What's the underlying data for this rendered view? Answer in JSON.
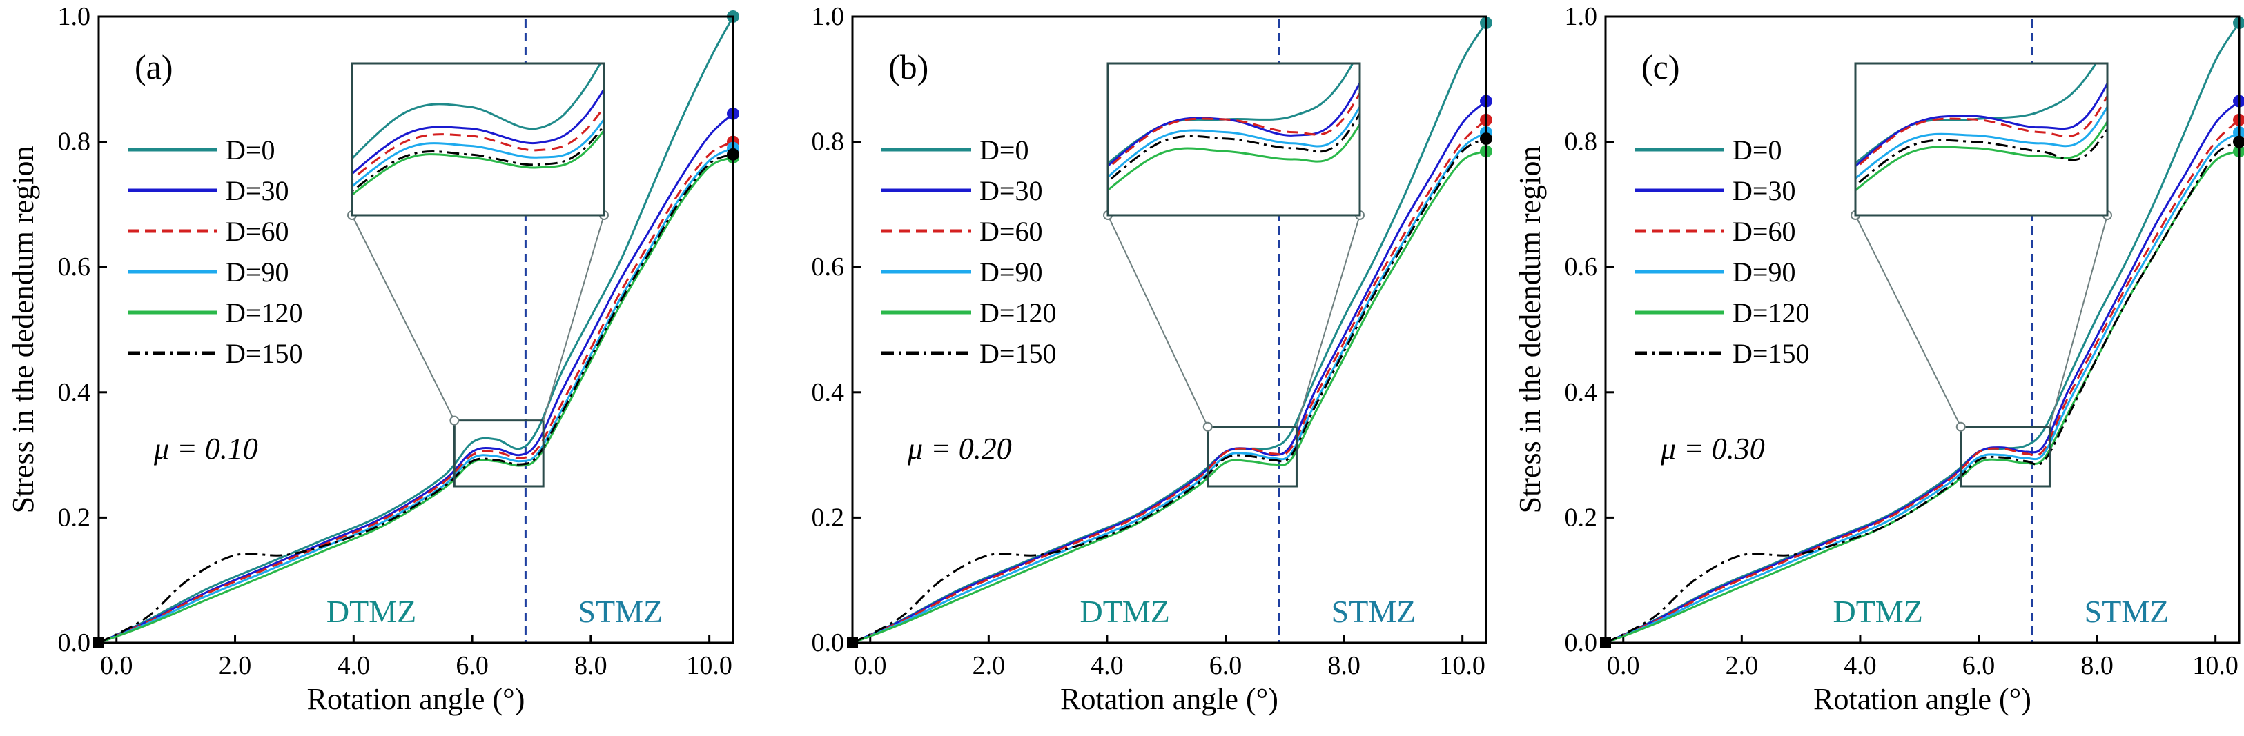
{
  "chart_data": [
    {
      "type": "line",
      "panel_label": "(a)",
      "annotation": "μ = 0.10",
      "xlabel": "Rotation angle (°)",
      "ylabel": "Stress in the dedendum region",
      "xlim": [
        -0.3,
        10.4
      ],
      "ylim": [
        0,
        1.0
      ],
      "xticks": [
        "0.0",
        "2.0",
        "4.0",
        "6.0",
        "8.0",
        "10.0"
      ],
      "yticks": [
        "0.0",
        "0.2",
        "0.4",
        "0.6",
        "0.8",
        "1.0"
      ],
      "divider_x": 6.9,
      "zone_labels": [
        "DTMZ",
        "STMZ"
      ],
      "inset_range": {
        "x": [
          5.7,
          7.2
        ],
        "y": [
          0.25,
          0.355
        ]
      },
      "series": [
        {
          "name": "D=0",
          "color": "#1f8a8a",
          "dash": "solid",
          "x": [
            -0.3,
            0.5,
            1.5,
            2.5,
            3.5,
            4.5,
            5.5,
            6.0,
            6.4,
            6.8,
            7.1,
            7.5,
            8.0,
            8.5,
            9.0,
            9.5,
            10.0,
            10.4
          ],
          "y": [
            0,
            0.035,
            0.085,
            0.125,
            0.165,
            0.205,
            0.265,
            0.32,
            0.325,
            0.31,
            0.34,
            0.43,
            0.52,
            0.61,
            0.72,
            0.83,
            0.93,
            1.0
          ]
        },
        {
          "name": "D=30",
          "color": "#1a1ad0",
          "dash": "solid",
          "x": [
            -0.3,
            0.5,
            1.5,
            2.5,
            3.5,
            4.5,
            5.5,
            6.0,
            6.4,
            6.8,
            7.1,
            7.5,
            8.0,
            8.5,
            9.0,
            9.5,
            10.0,
            10.4
          ],
          "y": [
            0,
            0.033,
            0.08,
            0.12,
            0.16,
            0.2,
            0.258,
            0.305,
            0.31,
            0.3,
            0.32,
            0.4,
            0.49,
            0.58,
            0.66,
            0.74,
            0.81,
            0.845
          ]
        },
        {
          "name": "D=60",
          "color": "#d42020",
          "dash": "dashed",
          "x": [
            -0.3,
            0.5,
            1.5,
            2.5,
            3.5,
            4.5,
            5.5,
            6.0,
            6.4,
            6.8,
            7.1,
            7.5,
            8.0,
            8.5,
            9.0,
            9.5,
            10.0,
            10.4
          ],
          "y": [
            0,
            0.032,
            0.078,
            0.117,
            0.157,
            0.197,
            0.255,
            0.3,
            0.305,
            0.295,
            0.31,
            0.38,
            0.47,
            0.56,
            0.64,
            0.72,
            0.78,
            0.8
          ]
        },
        {
          "name": "D=90",
          "color": "#1eaaee",
          "dash": "solid",
          "x": [
            -0.3,
            0.5,
            1.5,
            2.5,
            3.5,
            4.5,
            5.5,
            6.0,
            6.4,
            6.8,
            7.1,
            7.5,
            8.0,
            8.5,
            9.0,
            9.5,
            10.0,
            10.4
          ],
          "y": [
            0,
            0.03,
            0.074,
            0.113,
            0.153,
            0.193,
            0.25,
            0.295,
            0.298,
            0.29,
            0.302,
            0.37,
            0.46,
            0.55,
            0.63,
            0.71,
            0.77,
            0.79
          ]
        },
        {
          "name": "D=120",
          "color": "#2ab84a",
          "dash": "solid",
          "x": [
            -0.3,
            0.5,
            1.5,
            2.5,
            3.5,
            4.5,
            5.5,
            6.0,
            6.4,
            6.8,
            7.1,
            7.5,
            8.0,
            8.5,
            9.0,
            9.5,
            10.0,
            10.4
          ],
          "y": [
            0,
            0.028,
            0.068,
            0.107,
            0.147,
            0.187,
            0.245,
            0.288,
            0.29,
            0.283,
            0.295,
            0.36,
            0.45,
            0.54,
            0.62,
            0.7,
            0.76,
            0.775
          ]
        },
        {
          "name": "D=150",
          "color": "#000000",
          "dash": "dashdot",
          "x": [
            -0.3,
            0.5,
            1.2,
            2.0,
            2.8,
            3.5,
            4.5,
            5.5,
            6.0,
            6.4,
            6.8,
            7.1,
            7.5,
            8.0,
            8.5,
            9.0,
            9.5,
            10.0,
            10.4
          ],
          "y": [
            0,
            0.04,
            0.1,
            0.14,
            0.14,
            0.155,
            0.19,
            0.248,
            0.29,
            0.292,
            0.285,
            0.298,
            0.365,
            0.455,
            0.545,
            0.625,
            0.705,
            0.765,
            0.78
          ]
        }
      ]
    },
    {
      "type": "line",
      "panel_label": "(b)",
      "annotation": "μ = 0.20",
      "xlabel": "Rotation angle (°)",
      "ylabel": "",
      "xlim": [
        -0.3,
        10.4
      ],
      "ylim": [
        0,
        1.0
      ],
      "xticks": [
        "0.0",
        "2.0",
        "4.0",
        "6.0",
        "8.0",
        "10.0"
      ],
      "yticks": [
        "0.0",
        "0.2",
        "0.4",
        "0.6",
        "0.8",
        "1.0"
      ],
      "divider_x": 6.9,
      "zone_labels": [
        "DTMZ",
        "STMZ"
      ],
      "inset_range": {
        "x": [
          5.7,
          7.2
        ],
        "y": [
          0.25,
          0.345
        ]
      },
      "series": [
        {
          "name": "D=0",
          "color": "#1f8a8a",
          "dash": "solid",
          "x": [
            -0.3,
            0.5,
            1.5,
            2.5,
            3.5,
            4.5,
            5.5,
            6.0,
            6.4,
            6.8,
            7.1,
            7.5,
            8.0,
            8.5,
            9.0,
            9.5,
            10.0,
            10.4
          ],
          "y": [
            0,
            0.035,
            0.085,
            0.125,
            0.165,
            0.205,
            0.265,
            0.305,
            0.31,
            0.312,
            0.335,
            0.42,
            0.52,
            0.61,
            0.71,
            0.82,
            0.93,
            0.99
          ]
        },
        {
          "name": "D=30",
          "color": "#1a1ad0",
          "dash": "solid",
          "x": [
            -0.3,
            0.5,
            1.5,
            2.5,
            3.5,
            4.5,
            5.5,
            6.0,
            6.4,
            6.8,
            7.1,
            7.5,
            8.0,
            8.5,
            9.0,
            9.5,
            10.0,
            10.4
          ],
          "y": [
            0,
            0.034,
            0.083,
            0.123,
            0.163,
            0.203,
            0.262,
            0.305,
            0.31,
            0.3,
            0.315,
            0.4,
            0.49,
            0.58,
            0.67,
            0.75,
            0.83,
            0.865
          ]
        },
        {
          "name": "D=60",
          "color": "#d42020",
          "dash": "dashed",
          "x": [
            -0.3,
            0.5,
            1.5,
            2.5,
            3.5,
            4.5,
            5.5,
            6.0,
            6.4,
            6.8,
            7.1,
            7.5,
            8.0,
            8.5,
            9.0,
            9.5,
            10.0,
            10.4
          ],
          "y": [
            0,
            0.033,
            0.081,
            0.121,
            0.161,
            0.201,
            0.26,
            0.304,
            0.31,
            0.302,
            0.31,
            0.39,
            0.48,
            0.57,
            0.65,
            0.73,
            0.8,
            0.835
          ]
        },
        {
          "name": "D=90",
          "color": "#1eaaee",
          "dash": "solid",
          "x": [
            -0.3,
            0.5,
            1.5,
            2.5,
            3.5,
            4.5,
            5.5,
            6.0,
            6.4,
            6.8,
            7.1,
            7.5,
            8.0,
            8.5,
            9.0,
            9.5,
            10.0,
            10.4
          ],
          "y": [
            0,
            0.031,
            0.076,
            0.116,
            0.156,
            0.196,
            0.255,
            0.298,
            0.302,
            0.295,
            0.302,
            0.38,
            0.47,
            0.56,
            0.64,
            0.72,
            0.79,
            0.815
          ]
        },
        {
          "name": "D=120",
          "color": "#2ab84a",
          "dash": "solid",
          "x": [
            -0.3,
            0.5,
            1.5,
            2.5,
            3.5,
            4.5,
            5.5,
            6.0,
            6.4,
            6.8,
            7.1,
            7.5,
            8.0,
            8.5,
            9.0,
            9.5,
            10.0,
            10.4
          ],
          "y": [
            0,
            0.029,
            0.07,
            0.11,
            0.15,
            0.19,
            0.248,
            0.288,
            0.29,
            0.285,
            0.292,
            0.365,
            0.455,
            0.545,
            0.625,
            0.705,
            0.77,
            0.785
          ]
        },
        {
          "name": "D=150",
          "color": "#000000",
          "dash": "dashdot",
          "x": [
            -0.3,
            0.5,
            1.2,
            2.0,
            2.8,
            3.5,
            4.5,
            5.5,
            6.0,
            6.4,
            6.8,
            7.1,
            7.5,
            8.0,
            8.5,
            9.0,
            9.5,
            10.0,
            10.4
          ],
          "y": [
            0,
            0.04,
            0.1,
            0.14,
            0.14,
            0.155,
            0.192,
            0.252,
            0.295,
            0.298,
            0.292,
            0.298,
            0.375,
            0.465,
            0.555,
            0.635,
            0.715,
            0.785,
            0.805
          ]
        }
      ]
    },
    {
      "type": "line",
      "panel_label": "(c)",
      "annotation": "μ = 0.30",
      "xlabel": "Rotation angle (°)",
      "ylabel": "Stress in the dedendum region",
      "xlim": [
        -0.3,
        10.4
      ],
      "ylim": [
        0,
        1.0
      ],
      "xticks": [
        "0.0",
        "2.0",
        "4.0",
        "6.0",
        "8.0",
        "10.0"
      ],
      "yticks": [
        "0.0",
        "0.2",
        "0.4",
        "0.6",
        "0.8",
        "1.0"
      ],
      "divider_x": 6.9,
      "zone_labels": [
        "DTMZ",
        "STMZ"
      ],
      "inset_range": {
        "x": [
          5.7,
          7.2
        ],
        "y": [
          0.25,
          0.345
        ]
      },
      "series": [
        {
          "name": "D=0",
          "color": "#1f8a8a",
          "dash": "solid",
          "x": [
            -0.3,
            0.5,
            1.5,
            2.5,
            3.5,
            4.5,
            5.5,
            6.0,
            6.4,
            6.8,
            7.1,
            7.5,
            8.0,
            8.5,
            9.0,
            9.5,
            10.0,
            10.4
          ],
          "y": [
            0,
            0.035,
            0.085,
            0.125,
            0.165,
            0.205,
            0.265,
            0.305,
            0.31,
            0.315,
            0.34,
            0.42,
            0.52,
            0.61,
            0.71,
            0.82,
            0.93,
            0.99
          ]
        },
        {
          "name": "D=30",
          "color": "#1a1ad0",
          "dash": "solid",
          "x": [
            -0.3,
            0.5,
            1.5,
            2.5,
            3.5,
            4.5,
            5.5,
            6.0,
            6.4,
            6.8,
            7.1,
            7.5,
            8.0,
            8.5,
            9.0,
            9.5,
            10.0,
            10.4
          ],
          "y": [
            0,
            0.034,
            0.083,
            0.123,
            0.163,
            0.203,
            0.262,
            0.305,
            0.312,
            0.305,
            0.315,
            0.4,
            0.49,
            0.58,
            0.67,
            0.75,
            0.83,
            0.865
          ]
        },
        {
          "name": "D=60",
          "color": "#d42020",
          "dash": "dashed",
          "x": [
            -0.3,
            0.5,
            1.5,
            2.5,
            3.5,
            4.5,
            5.5,
            6.0,
            6.4,
            6.8,
            7.1,
            7.5,
            8.0,
            8.5,
            9.0,
            9.5,
            10.0,
            10.4
          ],
          "y": [
            0,
            0.033,
            0.081,
            0.121,
            0.161,
            0.201,
            0.26,
            0.304,
            0.31,
            0.302,
            0.308,
            0.39,
            0.48,
            0.57,
            0.65,
            0.73,
            0.8,
            0.835
          ]
        },
        {
          "name": "D=90",
          "color": "#1eaaee",
          "dash": "solid",
          "x": [
            -0.3,
            0.5,
            1.5,
            2.5,
            3.5,
            4.5,
            5.5,
            6.0,
            6.4,
            6.8,
            7.1,
            7.5,
            8.0,
            8.5,
            9.0,
            9.5,
            10.0,
            10.4
          ],
          "y": [
            0,
            0.031,
            0.076,
            0.116,
            0.156,
            0.196,
            0.255,
            0.296,
            0.3,
            0.295,
            0.302,
            0.38,
            0.47,
            0.56,
            0.64,
            0.72,
            0.79,
            0.815
          ]
        },
        {
          "name": "D=120",
          "color": "#2ab84a",
          "dash": "solid",
          "x": [
            -0.3,
            0.5,
            1.5,
            2.5,
            3.5,
            4.5,
            5.5,
            6.0,
            6.4,
            6.8,
            7.1,
            7.5,
            8.0,
            8.5,
            9.0,
            9.5,
            10.0,
            10.4
          ],
          "y": [
            0,
            0.029,
            0.07,
            0.11,
            0.15,
            0.19,
            0.248,
            0.288,
            0.292,
            0.287,
            0.294,
            0.365,
            0.455,
            0.545,
            0.625,
            0.705,
            0.77,
            0.785
          ]
        },
        {
          "name": "D=150",
          "color": "#000000",
          "dash": "dashdot",
          "x": [
            -0.3,
            0.5,
            1.2,
            2.0,
            2.8,
            3.5,
            4.5,
            5.5,
            6.0,
            6.4,
            6.8,
            7.1,
            7.5,
            8.0,
            8.5,
            9.0,
            9.5,
            10.0,
            10.4
          ],
          "y": [
            0,
            0.04,
            0.1,
            0.14,
            0.14,
            0.155,
            0.19,
            0.25,
            0.292,
            0.296,
            0.29,
            0.29,
            0.36,
            0.455,
            0.545,
            0.625,
            0.705,
            0.78,
            0.8
          ]
        }
      ]
    }
  ]
}
